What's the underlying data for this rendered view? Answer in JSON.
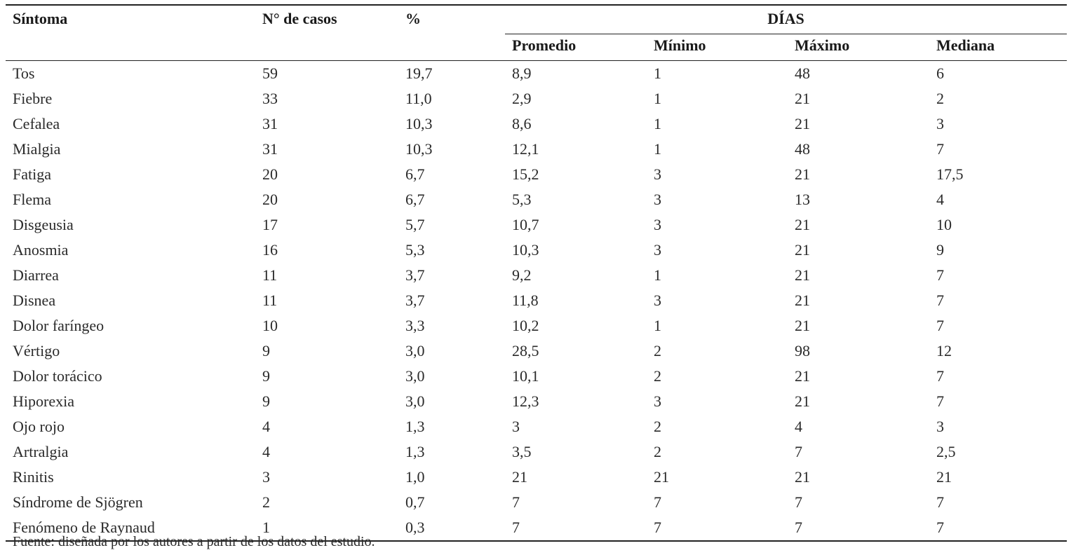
{
  "headers": {
    "symptom": "Síntoma",
    "cases": "N° de casos",
    "percent": "%",
    "days_group": "DÍAS",
    "mean": "Promedio",
    "min": "Mínimo",
    "max": "Máximo",
    "median": "Mediana"
  },
  "rows": [
    [
      "Tos",
      "59",
      "19,7",
      "8,9",
      "1",
      "48",
      "6"
    ],
    [
      "Fiebre",
      "33",
      "11,0",
      "2,9",
      "1",
      "21",
      "2"
    ],
    [
      "Cefalea",
      "31",
      "10,3",
      "8,6",
      "1",
      "21",
      "3"
    ],
    [
      "Mialgia",
      "31",
      "10,3",
      "12,1",
      "1",
      "48",
      "7"
    ],
    [
      "Fatiga",
      "20",
      "6,7",
      "15,2",
      "3",
      "21",
      "17,5"
    ],
    [
      "Flema",
      "20",
      "6,7",
      "5,3",
      "3",
      "13",
      "4"
    ],
    [
      "Disgeusia",
      "17",
      "5,7",
      "10,7",
      "3",
      "21",
      "10"
    ],
    [
      "Anosmia",
      "16",
      "5,3",
      "10,3",
      "3",
      "21",
      "9"
    ],
    [
      "Diarrea",
      "11",
      "3,7",
      "9,2",
      "1",
      "21",
      "7"
    ],
    [
      "Disnea",
      "11",
      "3,7",
      "11,8",
      "3",
      "21",
      "7"
    ],
    [
      "Dolor faríngeo",
      "10",
      "3,3",
      "10,2",
      "1",
      "21",
      "7"
    ],
    [
      "Vértigo",
      "9",
      "3,0",
      "28,5",
      "2",
      "98",
      "12"
    ],
    [
      "Dolor torácico",
      "9",
      "3,0",
      "10,1",
      "2",
      "21",
      "7"
    ],
    [
      "Hiporexia",
      "9",
      "3,0",
      "12,3",
      "3",
      "21",
      "7"
    ],
    [
      "Ojo rojo",
      "4",
      "1,3",
      "3",
      "2",
      "4",
      "3"
    ],
    [
      "Artralgia",
      "4",
      "1,3",
      "3,5",
      "2",
      "7",
      "2,5"
    ],
    [
      "Rinitis",
      "3",
      "1,0",
      "21",
      "21",
      "21",
      "21"
    ],
    [
      "Síndrome de Sjögren",
      "2",
      "0,7",
      "7",
      "7",
      "7",
      "7"
    ],
    [
      "Fenómeno de Raynaud",
      "1",
      "0,3",
      "7",
      "7",
      "7",
      "7"
    ]
  ],
  "footnote": "Fuente: diseñada por los autores a partir de los datos del estudio."
}
